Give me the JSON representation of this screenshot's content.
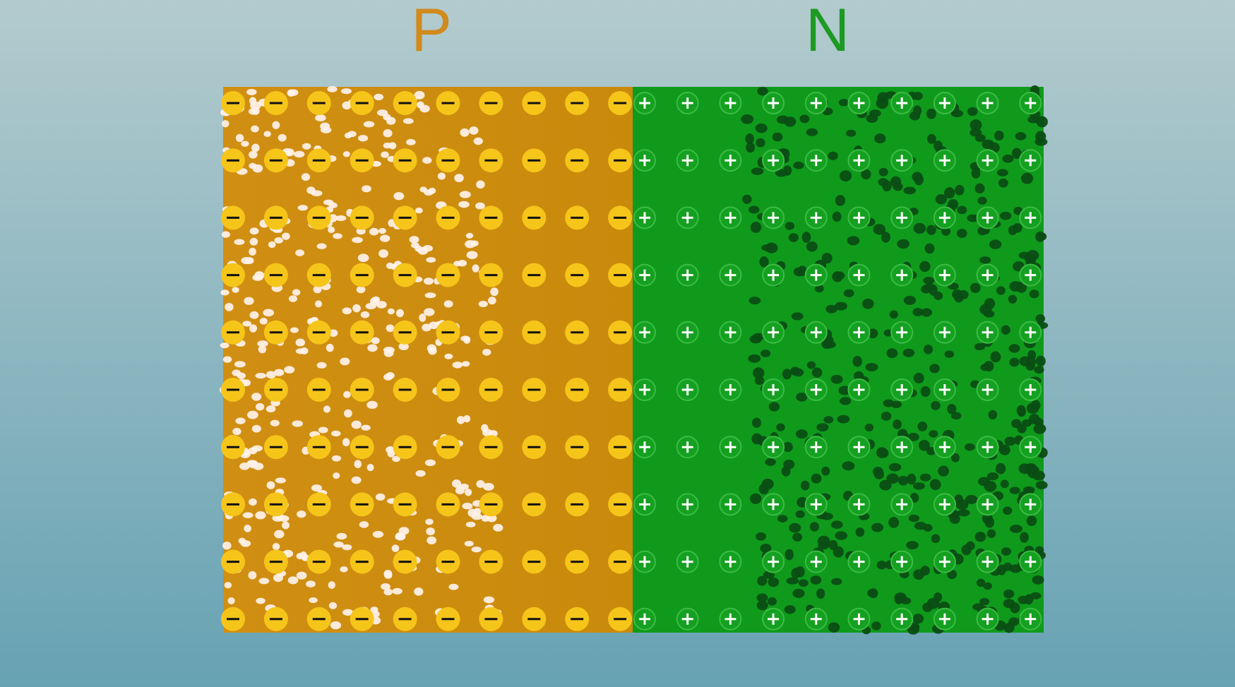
{
  "labels": {
    "p": "P",
    "n": "N"
  }
}
